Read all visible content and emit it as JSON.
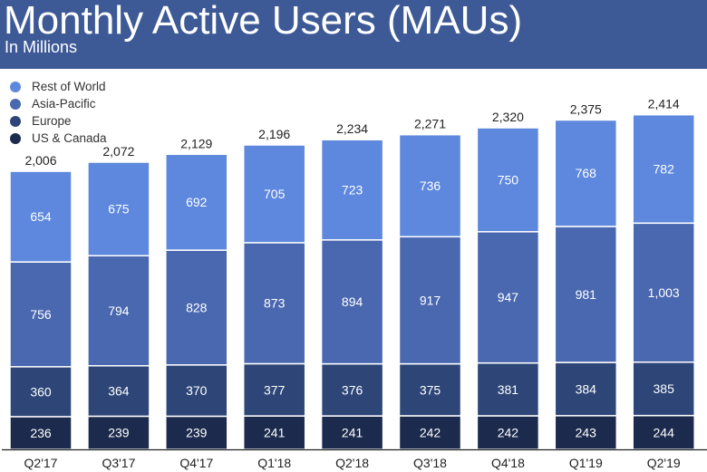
{
  "chart_data": {
    "type": "bar",
    "stacked": true,
    "title": "Monthly Active Users (MAUs)",
    "subtitle": "In Millions",
    "categories": [
      "Q2'17",
      "Q3'17",
      "Q4'17",
      "Q1'18",
      "Q2'18",
      "Q3'18",
      "Q4'18",
      "Q1'19",
      "Q2'19"
    ],
    "series": [
      {
        "name": "US & Canada",
        "color": "#1b2a4d",
        "values": [
          236,
          239,
          239,
          241,
          241,
          242,
          242,
          243,
          244
        ],
        "labels": [
          "236",
          "239",
          "239",
          "241",
          "241",
          "242",
          "242",
          "243",
          "244"
        ]
      },
      {
        "name": "Europe",
        "color": "#2d4677",
        "values": [
          360,
          364,
          370,
          377,
          376,
          375,
          381,
          384,
          385
        ],
        "labels": [
          "360",
          "364",
          "370",
          "377",
          "376",
          "375",
          "381",
          "384",
          "385"
        ]
      },
      {
        "name": "Asia-Pacific",
        "color": "#4a68b0",
        "values": [
          756,
          794,
          828,
          873,
          894,
          917,
          947,
          981,
          1003
        ],
        "labels": [
          "756",
          "794",
          "828",
          "873",
          "894",
          "917",
          "947",
          "981",
          "1,003"
        ]
      },
      {
        "name": "Rest of World",
        "color": "#5d88dd",
        "values": [
          654,
          675,
          692,
          705,
          723,
          736,
          750,
          768,
          782
        ],
        "labels": [
          "654",
          "675",
          "692",
          "705",
          "723",
          "736",
          "750",
          "768",
          "782"
        ]
      }
    ],
    "totals": [
      "2,006",
      "2,072",
      "2,129",
      "2,196",
      "2,234",
      "2,271",
      "2,320",
      "2,375",
      "2,414"
    ],
    "legend_order": [
      "Rest of World",
      "Asia-Pacific",
      "Europe",
      "US & Canada"
    ],
    "legend_position": "top-left",
    "grid": false
  }
}
